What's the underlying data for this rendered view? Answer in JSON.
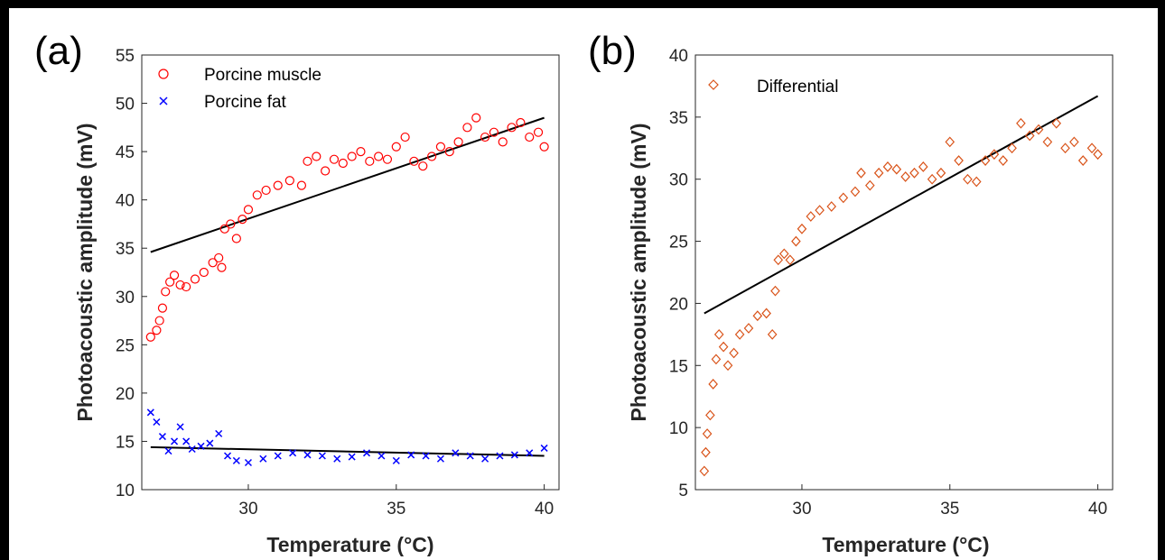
{
  "chart_data": [
    {
      "type": "scatter",
      "panel_label": "(a)",
      "xlabel": "Temperature (°C)",
      "ylabel": "Photoacoustic amplitude (mV)",
      "xlim": [
        26.4,
        40.5
      ],
      "ylim": [
        10,
        55
      ],
      "xticks": [
        30,
        35,
        40
      ],
      "yticks": [
        10,
        15,
        20,
        25,
        30,
        35,
        40,
        45,
        50,
        55
      ],
      "grid": false,
      "legend_position": "top-left",
      "series": [
        {
          "name": "Porcine muscle",
          "marker": "circle",
          "color": "#ff0000",
          "x": [
            26.7,
            26.9,
            27.0,
            27.1,
            27.2,
            27.35,
            27.5,
            27.7,
            27.9,
            28.2,
            28.5,
            28.8,
            29.0,
            29.1,
            29.2,
            29.4,
            29.6,
            29.8,
            30.0,
            30.3,
            30.6,
            31.0,
            31.4,
            31.8,
            32.0,
            32.3,
            32.6,
            32.9,
            33.2,
            33.5,
            33.8,
            34.1,
            34.4,
            34.7,
            35.0,
            35.3,
            35.6,
            35.9,
            36.2,
            36.5,
            36.8,
            37.1,
            37.4,
            37.7,
            38.0,
            38.3,
            38.6,
            38.9,
            39.2,
            39.5,
            39.8,
            40.0
          ],
          "y": [
            25.8,
            26.5,
            27.5,
            28.8,
            30.5,
            31.5,
            32.2,
            31.2,
            31.0,
            31.8,
            32.5,
            33.5,
            34.0,
            33.0,
            37.0,
            37.5,
            36.0,
            38.0,
            39.0,
            40.5,
            41.0,
            41.5,
            42.0,
            41.5,
            44.0,
            44.5,
            43.0,
            44.2,
            43.8,
            44.5,
            45.0,
            44.0,
            44.5,
            44.2,
            45.5,
            46.5,
            44.0,
            43.5,
            44.5,
            45.5,
            45.0,
            46.0,
            47.5,
            48.5,
            46.5,
            47.0,
            46.0,
            47.5,
            48.0,
            46.5,
            47.0,
            45.5
          ]
        },
        {
          "name": "Porcine fat",
          "marker": "x",
          "color": "#0000ff",
          "x": [
            26.7,
            26.9,
            27.1,
            27.3,
            27.5,
            27.7,
            27.9,
            28.1,
            28.4,
            28.7,
            29.0,
            29.3,
            29.6,
            30.0,
            30.5,
            31.0,
            31.5,
            32.0,
            32.5,
            33.0,
            33.5,
            34.0,
            34.5,
            35.0,
            35.5,
            36.0,
            36.5,
            37.0,
            37.5,
            38.0,
            38.5,
            39.0,
            39.5,
            40.0
          ],
          "y": [
            18.0,
            17.0,
            15.5,
            14.0,
            15.0,
            16.5,
            15.0,
            14.2,
            14.5,
            14.8,
            15.8,
            13.5,
            13.0,
            12.8,
            13.2,
            13.5,
            13.8,
            13.6,
            13.5,
            13.2,
            13.4,
            13.8,
            13.5,
            13.0,
            13.6,
            13.5,
            13.2,
            13.8,
            13.5,
            13.2,
            13.5,
            13.6,
            13.8,
            14.3
          ]
        }
      ],
      "fits": [
        {
          "x": [
            26.7,
            40.0
          ],
          "y": [
            34.6,
            48.5
          ]
        },
        {
          "x": [
            26.7,
            40.0
          ],
          "y": [
            14.4,
            13.5
          ]
        }
      ]
    },
    {
      "type": "scatter",
      "panel_label": "(b)",
      "xlabel": "Temperature (°C)",
      "ylabel": "Photoacoustic amplitude (mV)",
      "xlim": [
        26.4,
        40.5
      ],
      "ylim": [
        5,
        40
      ],
      "xticks": [
        30,
        35,
        40
      ],
      "yticks": [
        5,
        10,
        15,
        20,
        25,
        30,
        35,
        40
      ],
      "grid": false,
      "legend_position": "top-left",
      "series": [
        {
          "name": "Differential",
          "marker": "diamond",
          "color": "#d95319",
          "x": [
            26.7,
            26.75,
            26.8,
            26.9,
            27.0,
            27.1,
            27.2,
            27.35,
            27.5,
            27.7,
            27.9,
            28.2,
            28.5,
            28.8,
            29.0,
            29.1,
            29.2,
            29.4,
            29.6,
            29.8,
            30.0,
            30.3,
            30.6,
            31.0,
            31.4,
            31.8,
            32.0,
            32.3,
            32.6,
            32.9,
            33.2,
            33.5,
            33.8,
            34.1,
            34.4,
            34.7,
            35.0,
            35.3,
            35.6,
            35.9,
            36.2,
            36.5,
            36.8,
            37.1,
            37.4,
            37.7,
            38.0,
            38.3,
            38.6,
            38.9,
            39.2,
            39.5,
            39.8,
            40.0
          ],
          "y": [
            6.5,
            8.0,
            9.5,
            11.0,
            13.5,
            15.5,
            17.5,
            16.5,
            15.0,
            16.0,
            17.5,
            18.0,
            19.0,
            19.2,
            17.5,
            21.0,
            23.5,
            24.0,
            23.5,
            25.0,
            26.0,
            27.0,
            27.5,
            27.8,
            28.5,
            29.0,
            30.5,
            29.5,
            30.5,
            31.0,
            30.8,
            30.2,
            30.5,
            31.0,
            30.0,
            30.5,
            33.0,
            31.5,
            30.0,
            29.8,
            31.5,
            32.0,
            31.5,
            32.5,
            34.5,
            33.5,
            34.0,
            33.0,
            34.5,
            32.5,
            33.0,
            31.5,
            32.5,
            32.0
          ]
        }
      ],
      "fits": [
        {
          "x": [
            26.7,
            40.0
          ],
          "y": [
            19.2,
            36.7
          ]
        }
      ]
    }
  ]
}
